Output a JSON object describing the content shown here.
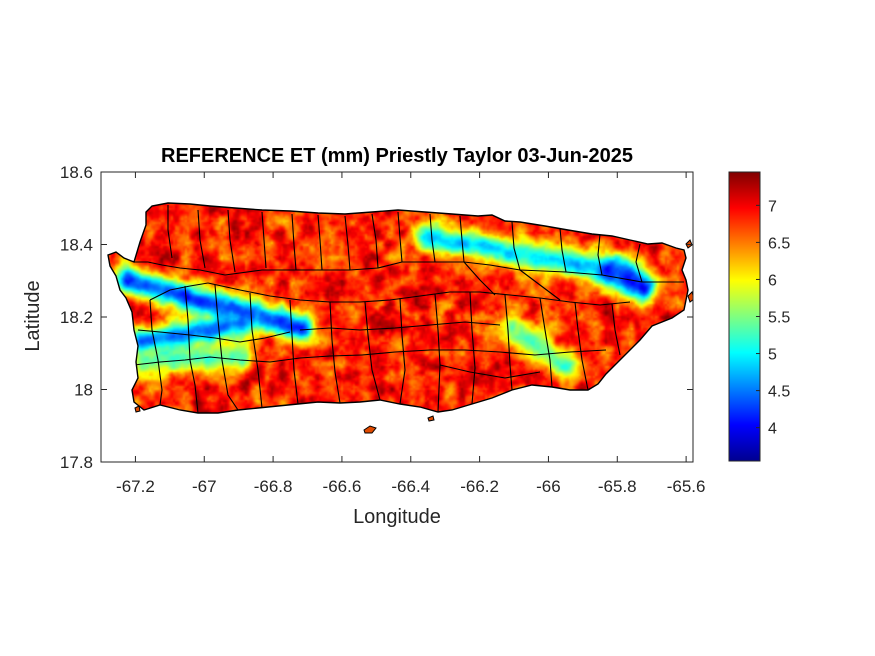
{
  "title": "REFERENCE ET (mm) Priestly Taylor 03-Jun-2025",
  "chart_data": {
    "type": "heatmap",
    "title": "REFERENCE ET (mm) Priestly Taylor 03-Jun-2025",
    "xlabel": "Longitude",
    "ylabel": "Latitude",
    "xlim": [
      -67.3,
      -65.58
    ],
    "ylim": [
      17.8,
      18.6
    ],
    "x_ticks": [
      -67.2,
      -67,
      -66.8,
      -66.6,
      -66.4,
      -66.2,
      -66,
      -65.8,
      -65.6
    ],
    "x_tick_labels": [
      "-67.2",
      "-67",
      "-66.8",
      "-66.6",
      "-66.4",
      "-66.2",
      "-66",
      "-65.8",
      "-65.6"
    ],
    "y_ticks": [
      17.8,
      18,
      18.2,
      18.4,
      18.6
    ],
    "y_tick_labels": [
      "17.8",
      "18",
      "18.2",
      "18.4",
      "18.6"
    ],
    "colorbar": {
      "colormap": "jet",
      "range": [
        3.55,
        7.45
      ],
      "ticks": [
        4,
        4.5,
        5,
        5.5,
        6,
        6.5,
        7
      ],
      "tick_labels": [
        "4",
        "4.5",
        "5",
        "5.5",
        "6",
        "6.5",
        "7"
      ]
    },
    "field": {
      "base_value": 6.85,
      "low_bands": [
        {
          "region": "west band",
          "from": [
            -67.22,
            18.3
          ],
          "to": [
            -66.72,
            18.17
          ],
          "min_value": 4.3
        },
        {
          "region": "west interior",
          "from": [
            -67.18,
            18.13
          ],
          "to": [
            -66.9,
            18.18
          ],
          "min_value": 4.4
        },
        {
          "region": "south-west",
          "from": [
            -67.17,
            18.08
          ],
          "to": [
            -66.9,
            18.09
          ],
          "min_value": 5.3
        },
        {
          "region": "north-central band",
          "from": [
            -66.35,
            18.42
          ],
          "to": [
            -65.78,
            18.32
          ],
          "min_value": 4.9
        },
        {
          "region": "north-east",
          "from": [
            -65.82,
            18.33
          ],
          "to": [
            -65.72,
            18.28
          ],
          "min_value": 4.2
        },
        {
          "region": "east interior",
          "from": [
            -66.1,
            18.17
          ],
          "to": [
            -65.95,
            18.06
          ],
          "min_value": 5.3
        }
      ]
    },
    "grid": false,
    "legend": "colorbar-right"
  },
  "colors": {
    "frame": "#262626",
    "background": "#ffffff",
    "boundaries": "#000000"
  }
}
